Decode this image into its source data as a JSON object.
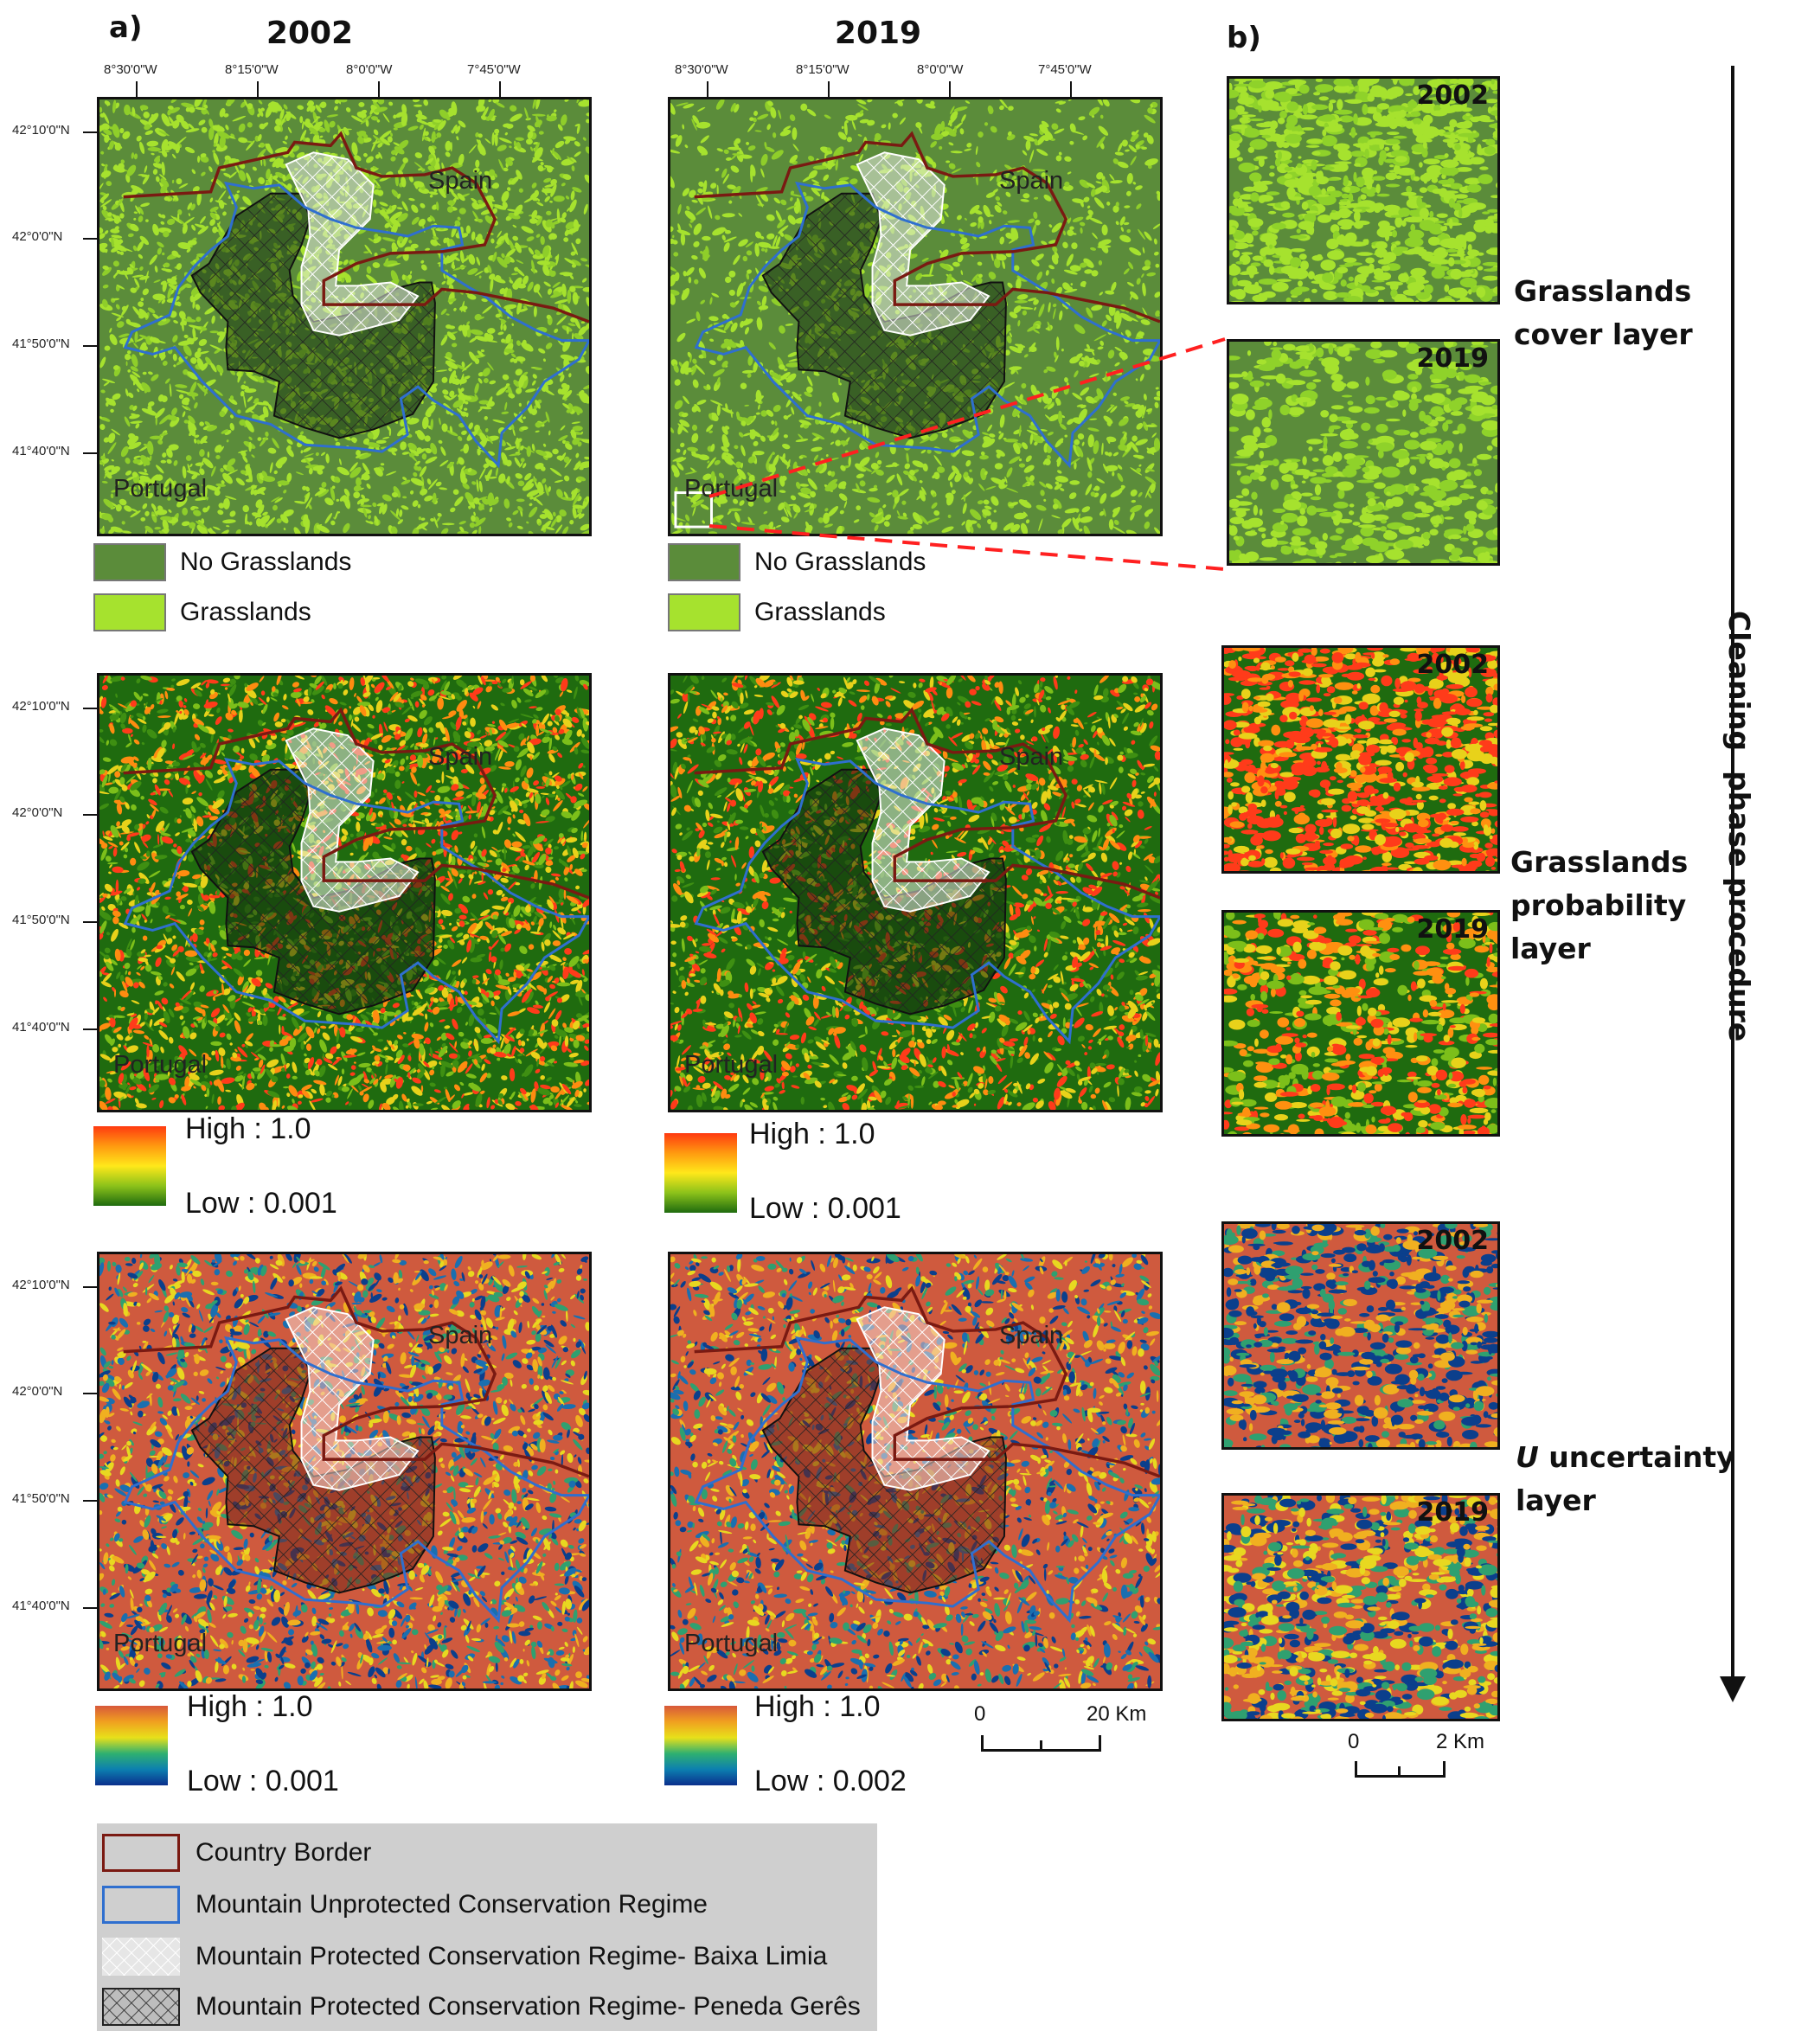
{
  "panel_a_label": "a)",
  "panel_b_label": "b)",
  "years": [
    "2002",
    "2019"
  ],
  "lon_ticks": [
    "8°30'0\"W",
    "8°15'0\"W",
    "8°0'0\"W",
    "7°45'0\"W"
  ],
  "lat_ticks": [
    "42°10'0\"N",
    "42°0'0\"N",
    "41°50'0\"N",
    "41°40'0\"N"
  ],
  "map_labels": {
    "spain": "Spain",
    "portugal": "Portugal"
  },
  "cover_legend": {
    "no_grasslands": "No Grasslands",
    "grasslands": "Grasslands",
    "colors": {
      "no_grasslands": "#5b8c3a",
      "grasslands": "#a6e22e"
    }
  },
  "probability_legend": {
    "high": "High : 1.0",
    "low": "Low : 0.001"
  },
  "uncertainty_legend_2002": {
    "high": "High : 1.0",
    "low": "Low : 0.001"
  },
  "uncertainty_legend_2019": {
    "high": "High : 1.0",
    "low": "Low : 0.002"
  },
  "scale_main": {
    "zero": "0",
    "end": "20 Km"
  },
  "scale_inset": {
    "zero": "0",
    "end": "2 Km"
  },
  "inset_years": [
    "2002",
    "2019"
  ],
  "side_labels": {
    "cover": [
      "Grasslands",
      "cover layer"
    ],
    "probability": [
      "Grasslands",
      "probability",
      "layer"
    ],
    "uncertainty_prefix": "U",
    "uncertainty": [
      " uncertainty",
      "layer"
    ]
  },
  "arrow_label": "Cleaning  phase procedure",
  "bottom_legend": {
    "country_border": "Country Border",
    "unprotected": "Mountain Unprotected Conservation Regime",
    "baixa_limia": "Mountain Protected Conservation Regime- Baixa Limia",
    "peneda_geres": "Mountain Protected Conservation Regime- Peneda Gerês"
  },
  "colors": {
    "country_border": "#7a1a12",
    "unprotected_border": "#2f6fcf",
    "cover_bg": "#5b8c3a",
    "cover_patch": "#a6e22e",
    "prob_bg": "#1f6b0f",
    "prob_hi": "#ff3b1a",
    "prob_mid": "#e8d21a",
    "unc_bg": "#cf5a3e",
    "unc_low": "#0b3f8c",
    "unc_mid": "#f0b020",
    "red_dash": "#ff2020"
  }
}
